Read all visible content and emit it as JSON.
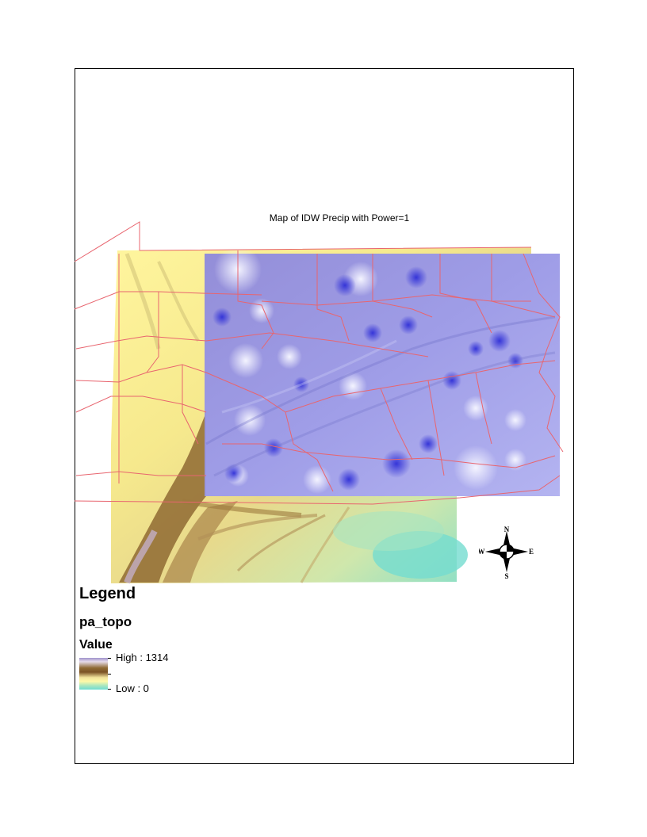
{
  "map": {
    "title": "Map of IDW Precip with Power=1"
  },
  "legend": {
    "title": "Legend",
    "layer": "pa_topo",
    "field": "Value",
    "high_label": "High : 1314",
    "low_label": "Low : 0",
    "high_value": 1314,
    "low_value": 0
  },
  "north_arrow": {
    "n": "N",
    "s": "S",
    "e": "E",
    "w": "W"
  },
  "colors": {
    "boundary": "#e8656f",
    "precip_surface": "#8d8be6",
    "topo_low": "#6fdcd2",
    "topo_mid": "#fff9a8",
    "topo_ridge": "#8f6a33",
    "topo_high": "#e6dbe9"
  }
}
